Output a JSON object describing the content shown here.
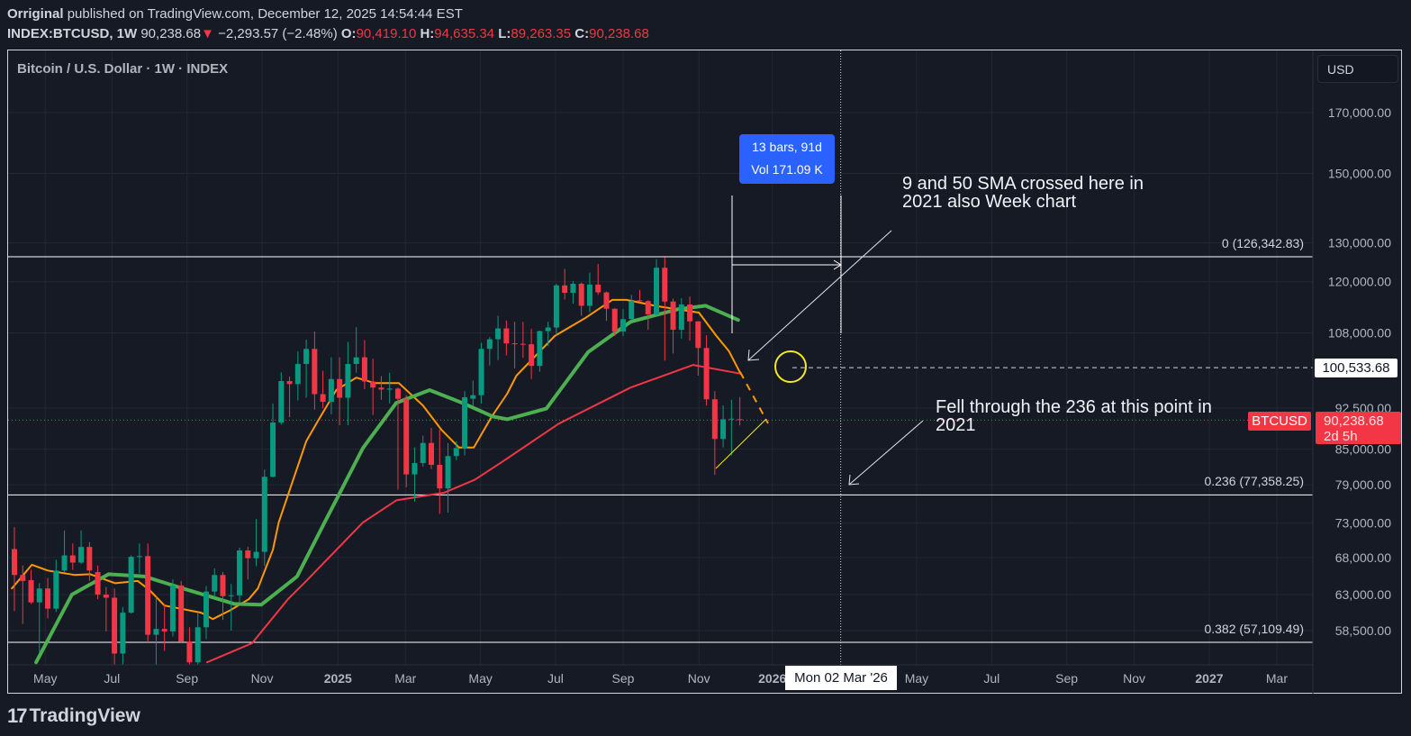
{
  "header": {
    "author": "Orriginal",
    "published": "published on TradingView.com, December 12, 2025 14:54:44 EST",
    "symbol": "INDEX:BTCUSD, 1W",
    "last": "90,238.68",
    "change_arrow": "▼",
    "change": "−2,293.57 (−2.48%)",
    "o_label": "O:",
    "o": "90,419.10",
    "h_label": "H:",
    "h": "94,635.34",
    "l_label": "L:",
    "l": "89,263.35",
    "c_label": "C:",
    "c": "90,238.68"
  },
  "legend": "Bitcoin / U.S. Dollar · 1W · INDEX",
  "currency_button": "USD",
  "measure": {
    "line1": "13 bars, 91d",
    "line2": "Vol 171.09 K"
  },
  "annotations": {
    "sma_cross": [
      "9 and 50 SMA crossed here in",
      "2021 also Week chart"
    ],
    "fell_through": [
      "Fell through the 236 at this point in",
      "2021"
    ]
  },
  "crosshair": {
    "price_label": "100,533.68",
    "date_label": "Mon 02 Mar '26",
    "price": 100533.68,
    "week": 99.1
  },
  "last_price_tag": {
    "symbol": "BTCUSD",
    "price": "90,238.68",
    "countdown": "2d 5h",
    "value": 90238.68
  },
  "logo_text": "TradingView",
  "logo_mark": "17",
  "colors": {
    "up": "#089981",
    "down": "#f23645",
    "sma_fast": "#ff9800",
    "sma_mid": "#4caf50",
    "sma_slow": "#f23645",
    "measure": "#2962ff",
    "circle": "#f5e728"
  },
  "chart_data": {
    "type": "candlestick",
    "title": "Bitcoin / U.S. Dollar · 1W · INDEX",
    "y_scale": "log",
    "x_unit": "weeks from first visible bar (week of 2024-04-08)",
    "candles_ohlc": [
      [
        69200,
        72400,
        60900,
        65600
      ],
      [
        65600,
        66900,
        59300,
        64800
      ],
      [
        64900,
        66300,
        61800,
        62000
      ],
      [
        62000,
        64500,
        56000,
        63800
      ],
      [
        63800,
        65200,
        60000,
        61200
      ],
      [
        61200,
        67700,
        60800,
        66200
      ],
      [
        66200,
        71900,
        66000,
        68300
      ],
      [
        68300,
        70000,
        66300,
        67300
      ],
      [
        67300,
        71900,
        67100,
        69500
      ],
      [
        69500,
        70200,
        64800,
        66200
      ],
      [
        66000,
        66900,
        62400,
        63000
      ],
      [
        63000,
        64000,
        58400,
        62600
      ],
      [
        62600,
        63800,
        53500,
        55800
      ],
      [
        55800,
        61400,
        54300,
        60700
      ],
      [
        60700,
        68300,
        60600,
        68100
      ],
      [
        68100,
        70000,
        65800,
        68200
      ],
      [
        68200,
        70000,
        57100,
        58000
      ],
      [
        58000,
        62700,
        49000,
        58700
      ],
      [
        58700,
        61800,
        56100,
        58400
      ],
      [
        58400,
        65000,
        57800,
        64200
      ],
      [
        64200,
        64800,
        57100,
        57200
      ],
      [
        57200,
        58900,
        52600,
        54800
      ],
      [
        54800,
        60600,
        54500,
        58900
      ],
      [
        58900,
        64100,
        57500,
        63400
      ],
      [
        63400,
        66500,
        62700,
        65600
      ],
      [
        65600,
        66000,
        59800,
        62800
      ],
      [
        62800,
        64400,
        58500,
        62900
      ],
      [
        62900,
        69400,
        62000,
        69000
      ],
      [
        69000,
        69500,
        65000,
        67900
      ],
      [
        67900,
        73600,
        66800,
        68800
      ],
      [
        68800,
        81500,
        66800,
        80300
      ],
      [
        80300,
        93400,
        80200,
        89800
      ],
      [
        89800,
        99600,
        89400,
        97800
      ],
      [
        97800,
        98700,
        90800,
        97200
      ],
      [
        97200,
        104000,
        94000,
        101300
      ],
      [
        101300,
        106500,
        94500,
        104500
      ],
      [
        104500,
        108300,
        92200,
        95200
      ],
      [
        95200,
        99900,
        92500,
        93700
      ],
      [
        93700,
        102700,
        91300,
        98200
      ],
      [
        98200,
        102700,
        89300,
        94500
      ],
      [
        94500,
        106000,
        89300,
        101300
      ],
      [
        101300,
        109300,
        99500,
        102700
      ],
      [
        102700,
        106400,
        96200,
        97700
      ],
      [
        97700,
        102400,
        91200,
        96500
      ],
      [
        96500,
        98800,
        94100,
        96100
      ],
      [
        96100,
        99500,
        93400,
        96300
      ],
      [
        96300,
        96500,
        78200,
        94300
      ],
      [
        94300,
        95000,
        78600,
        80700
      ],
      [
        80700,
        85300,
        76300,
        82600
      ],
      [
        82600,
        87400,
        82000,
        86100
      ],
      [
        86100,
        88800,
        81600,
        82300
      ],
      [
        82300,
        88500,
        74400,
        78400
      ],
      [
        78400,
        86100,
        74600,
        83800
      ],
      [
        83800,
        86400,
        83100,
        85200
      ],
      [
        85200,
        95800,
        83900,
        94600
      ],
      [
        94300,
        97900,
        92900,
        95000
      ],
      [
        95000,
        105800,
        93400,
        104500
      ],
      [
        104500,
        107100,
        101000,
        106600
      ],
      [
        106600,
        111900,
        102100,
        109000
      ],
      [
        109000,
        110800,
        103100,
        105700
      ],
      [
        105700,
        110500,
        100400,
        105600
      ],
      [
        105600,
        110500,
        102600,
        105500
      ],
      [
        105500,
        108900,
        98200,
        100900
      ],
      [
        100900,
        108500,
        99700,
        108400
      ],
      [
        108400,
        110500,
        105100,
        109200
      ],
      [
        109200,
        119500,
        107500,
        119100
      ],
      [
        119100,
        123200,
        115700,
        117300
      ],
      [
        117300,
        120200,
        114700,
        119500
      ],
      [
        119500,
        119800,
        111900,
        114200
      ],
      [
        114200,
        122300,
        112700,
        119300
      ],
      [
        119300,
        124500,
        116800,
        117400
      ],
      [
        117400,
        117600,
        110700,
        113500
      ],
      [
        113500,
        113600,
        107300,
        108300
      ],
      [
        108300,
        113400,
        107300,
        111100
      ],
      [
        111100,
        116800,
        110800,
        115300
      ],
      [
        115500,
        118000,
        115000,
        115300
      ],
      [
        115300,
        115500,
        108700,
        112200
      ],
      [
        112200,
        125700,
        111800,
        123500
      ],
      [
        123500,
        126200,
        102000,
        115200
      ],
      [
        115200,
        115900,
        103500,
        108700
      ],
      [
        108700,
        116000,
        106700,
        114500
      ],
      [
        114500,
        116400,
        106300,
        110600
      ],
      [
        110600,
        110600,
        98900,
        104700
      ],
      [
        104700,
        107500,
        93000,
        94200
      ],
      [
        94200,
        95800,
        80600,
        86800
      ],
      [
        86800,
        93000,
        85300,
        90400
      ],
      [
        90400,
        94100,
        83900,
        90500
      ],
      [
        90419.1,
        94635.34,
        89263.35,
        90238.68
      ]
    ],
    "series": [
      {
        "id": "sma_fast",
        "color": "#ff9800",
        "points": [
          [
            -0.3,
            63800
          ],
          [
            2.1,
            67000
          ],
          [
            4.0,
            66200
          ],
          [
            7.2,
            65600
          ],
          [
            9.1,
            65700
          ],
          [
            12.1,
            64500
          ],
          [
            14.8,
            64800
          ],
          [
            16.2,
            63600
          ],
          [
            18.0,
            61600
          ],
          [
            22.4,
            60700
          ],
          [
            23.8,
            59900
          ],
          [
            25.9,
            61000
          ],
          [
            28.1,
            62400
          ],
          [
            29.2,
            63800
          ],
          [
            31.0,
            69100
          ],
          [
            31.7,
            73100
          ],
          [
            35.0,
            86400
          ],
          [
            36.4,
            90100
          ],
          [
            38.6,
            96000
          ],
          [
            41.0,
            98500
          ],
          [
            43.2,
            97400
          ],
          [
            46.1,
            97400
          ],
          [
            49.0,
            93000
          ],
          [
            51.2,
            88500
          ],
          [
            53.3,
            85300
          ],
          [
            55.1,
            85300
          ],
          [
            57.2,
            90800
          ],
          [
            59.1,
            95300
          ],
          [
            60.2,
            98900
          ],
          [
            64.8,
            107300
          ],
          [
            68.5,
            111400
          ],
          [
            71.7,
            115600
          ],
          [
            73.4,
            115600
          ],
          [
            77.1,
            114100
          ],
          [
            82.1,
            112600
          ],
          [
            84.2,
            107300
          ],
          [
            85.7,
            104000
          ],
          [
            87.1,
            99300
          ]
        ]
      },
      {
        "id": "sma_mid",
        "color": "#4caf50",
        "points": [
          [
            2.6,
            54800
          ],
          [
            6.9,
            63000
          ],
          [
            11.3,
            65700
          ],
          [
            15.6,
            65400
          ],
          [
            19.9,
            63900
          ],
          [
            26.4,
            61800
          ],
          [
            29.6,
            61700
          ],
          [
            33.9,
            65400
          ],
          [
            37.2,
            73100
          ],
          [
            41.8,
            85200
          ],
          [
            45.8,
            93500
          ],
          [
            49.8,
            96000
          ],
          [
            53.7,
            93500
          ],
          [
            57.4,
            90900
          ],
          [
            59.1,
            90400
          ],
          [
            63.8,
            92400
          ],
          [
            68.8,
            103800
          ],
          [
            73.9,
            110500
          ],
          [
            79.6,
            113400
          ],
          [
            82.9,
            114200
          ],
          [
            86.8,
            110900
          ]
        ]
      },
      {
        "id": "sma_slow",
        "color": "#f23645",
        "points": [
          [
            23.1,
            54800
          ],
          [
            28.5,
            57000
          ],
          [
            32.8,
            62400
          ],
          [
            35.0,
            64800
          ],
          [
            41.8,
            73100
          ],
          [
            45.8,
            76500
          ],
          [
            51.5,
            77700
          ],
          [
            55.2,
            79800
          ],
          [
            58.7,
            83000
          ],
          [
            65.3,
            89600
          ],
          [
            73.9,
            96500
          ],
          [
            81.4,
            101100
          ],
          [
            87.1,
            99300
          ]
        ]
      }
    ],
    "y_ticks": [
      {
        "value": 170000,
        "label": "170,000.00"
      },
      {
        "value": 150000,
        "label": "150,000.00"
      },
      {
        "value": 130000,
        "label": "130,000.00"
      },
      {
        "value": 120000,
        "label": "120,000.00"
      },
      {
        "value": 108000,
        "label": "108,000.00"
      },
      {
        "value": 92500,
        "label": "92,500.00"
      },
      {
        "value": 85000,
        "label": "85,000.00"
      },
      {
        "value": 79000,
        "label": "79,000.00"
      },
      {
        "value": 73000,
        "label": "73,000.00"
      },
      {
        "value": 68000,
        "label": "68,000.00"
      },
      {
        "value": 63000,
        "label": "63,000.00"
      },
      {
        "value": 58500,
        "label": "58,500.00"
      }
    ],
    "x_ticks": [
      {
        "week": 3.7,
        "label": "May",
        "bold": false
      },
      {
        "week": 11.7,
        "label": "Jul",
        "bold": false
      },
      {
        "week": 20.7,
        "label": "Sep",
        "bold": false
      },
      {
        "week": 29.7,
        "label": "Nov",
        "bold": false
      },
      {
        "week": 38.8,
        "label": "2025",
        "bold": true
      },
      {
        "week": 46.9,
        "label": "Mar",
        "bold": false
      },
      {
        "week": 55.9,
        "label": "May",
        "bold": false
      },
      {
        "week": 64.9,
        "label": "Jul",
        "bold": false
      },
      {
        "week": 73.0,
        "label": "Sep",
        "bold": false
      },
      {
        "week": 82.1,
        "label": "Nov",
        "bold": false
      },
      {
        "week": 90.9,
        "label": "2026",
        "bold": true
      },
      {
        "week": 108.2,
        "label": "May",
        "bold": false
      },
      {
        "week": 117.2,
        "label": "Jul",
        "bold": false
      },
      {
        "week": 126.2,
        "label": "Sep",
        "bold": false
      },
      {
        "week": 134.3,
        "label": "Nov",
        "bold": false
      },
      {
        "week": 143.3,
        "label": "2027",
        "bold": true
      },
      {
        "week": 151.4,
        "label": "Mar",
        "bold": false
      }
    ],
    "fib_levels": [
      {
        "level": "0",
        "price": 126342.83,
        "label": "0 (126,342.83)"
      },
      {
        "level": "0.236",
        "price": 77358.25,
        "label": "0.236 (77,358.25)"
      },
      {
        "level": "0.382",
        "price": 57109.49,
        "label": "0.382 (57,109.49)"
      }
    ],
    "grid": true
  }
}
